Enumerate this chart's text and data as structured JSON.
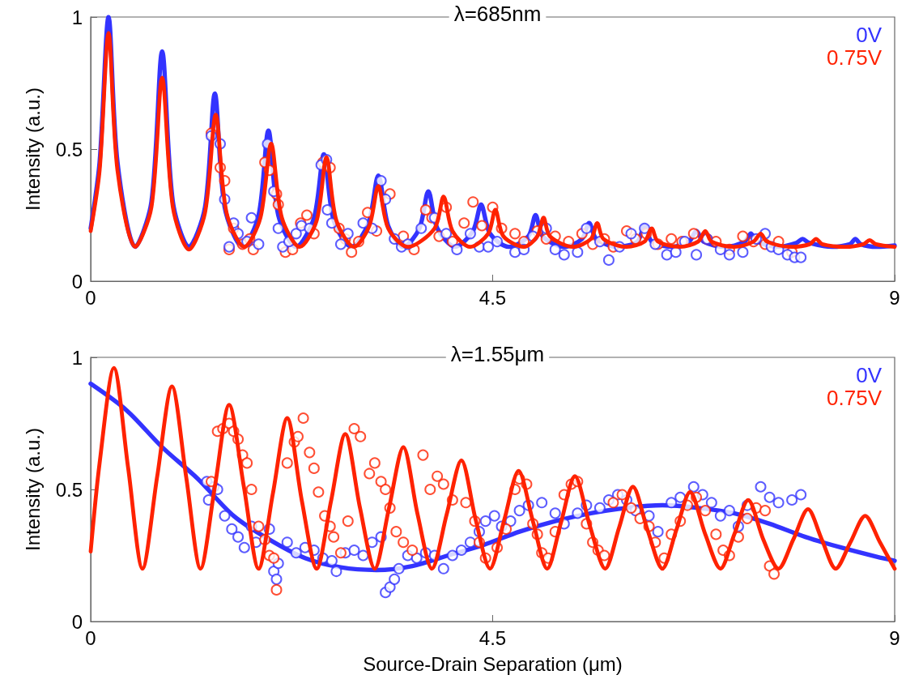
{
  "chart_data": [
    {
      "type": "line",
      "title": "λ=685nm",
      "ylabel": "Intensity (a.u.)",
      "xlim": [
        0,
        9
      ],
      "ylim": [
        0,
        1
      ],
      "xticks": [
        0,
        4.5,
        9
      ],
      "yticks": [
        0,
        0.5,
        1
      ],
      "grid": false,
      "legend": "top right",
      "series": [
        {
          "name": "0V",
          "marker": "none",
          "color": "#3333ff",
          "x": [
            0,
            0.1,
            0.2,
            0.3,
            0.5,
            0.68,
            0.8,
            0.92,
            1.1,
            1.28,
            1.39,
            1.5,
            1.7,
            1.88,
            1.99,
            2.1,
            2.3,
            2.5,
            2.61,
            2.72,
            2.92,
            3.11,
            3.22,
            3.33,
            3.5,
            3.68,
            3.78,
            3.88,
            4.08,
            4.28,
            4.37,
            4.47,
            4.68,
            4.9,
            4.98,
            5.06,
            5.3,
            5.5,
            5.58,
            5.66,
            5.9,
            6.12,
            6.2,
            6.28,
            6.5,
            6.7,
            6.78,
            6.86,
            7.1,
            7.32,
            7.39,
            7.46,
            7.7,
            7.9,
            7.97,
            8.04,
            8.3,
            8.5,
            8.56,
            8.62,
            8.8,
            9
          ],
          "values": [
            0.2,
            0.45,
            1,
            0.45,
            0.13,
            0.3,
            0.87,
            0.3,
            0.13,
            0.28,
            0.71,
            0.28,
            0.13,
            0.25,
            0.57,
            0.25,
            0.13,
            0.24,
            0.48,
            0.23,
            0.13,
            0.22,
            0.4,
            0.21,
            0.13,
            0.2,
            0.34,
            0.2,
            0.13,
            0.19,
            0.29,
            0.18,
            0.13,
            0.17,
            0.25,
            0.17,
            0.13,
            0.16,
            0.22,
            0.16,
            0.13,
            0.15,
            0.21,
            0.15,
            0.13,
            0.15,
            0.19,
            0.15,
            0.13,
            0.15,
            0.18,
            0.15,
            0.13,
            0.145,
            0.16,
            0.145,
            0.13,
            0.14,
            0.16,
            0.14,
            0.13,
            0.135
          ]
        },
        {
          "name": "0.75V",
          "marker": "none",
          "color": "#ff2200",
          "x": [
            0,
            0.1,
            0.2,
            0.3,
            0.5,
            0.68,
            0.8,
            0.92,
            1.1,
            1.28,
            1.4,
            1.52,
            1.72,
            1.9,
            2.02,
            2.14,
            2.34,
            2.53,
            2.64,
            2.75,
            2.95,
            3.12,
            3.22,
            3.33,
            3.55,
            3.85,
            3.95,
            4.05,
            4.25,
            4.45,
            4.53,
            4.62,
            4.85,
            5,
            5.07,
            5.14,
            5.4,
            5.6,
            5.67,
            5.74,
            6,
            6.2,
            6.28,
            6.35,
            6.6,
            6.8,
            6.88,
            6.95,
            7.2,
            7.42,
            7.5,
            7.57,
            7.85,
            8.05,
            8.12,
            8.19,
            8.45,
            8.65,
            8.72,
            8.79,
            9
          ],
          "values": [
            0.19,
            0.42,
            0.94,
            0.42,
            0.13,
            0.28,
            0.77,
            0.28,
            0.12,
            0.26,
            0.63,
            0.26,
            0.13,
            0.24,
            0.52,
            0.24,
            0.13,
            0.23,
            0.47,
            0.23,
            0.13,
            0.21,
            0.36,
            0.2,
            0.13,
            0.2,
            0.32,
            0.19,
            0.13,
            0.18,
            0.27,
            0.17,
            0.13,
            0.17,
            0.24,
            0.17,
            0.13,
            0.16,
            0.22,
            0.16,
            0.13,
            0.15,
            0.2,
            0.15,
            0.13,
            0.15,
            0.19,
            0.15,
            0.13,
            0.15,
            0.18,
            0.15,
            0.13,
            0.14,
            0.16,
            0.14,
            0.13,
            0.14,
            0.155,
            0.14,
            0.13
          ]
        },
        {
          "type": "scatter",
          "marker": "circle",
          "color": "#ff2200",
          "x": [
            1.35,
            1.45,
            1.5,
            1.55,
            1.6,
            1.7,
            1.78,
            1.82,
            1.95,
            2,
            2.08,
            2.1,
            2.18,
            2.26,
            2.35,
            2.42,
            2.5,
            2.6,
            2.68,
            2.78,
            2.85,
            2.92,
            3,
            3.1,
            3.2,
            3.35,
            3.5,
            3.62,
            3.75,
            3.82,
            3.9,
            3.98,
            4.05,
            4.18,
            4.28,
            4.38,
            4.5,
            4.6,
            4.75,
            4.85,
            5,
            5.1,
            5.2,
            5.35,
            5.5,
            5.62,
            5.75,
            5.85,
            6,
            6.1,
            6.22,
            6.35,
            6.5,
            6.62,
            6.75,
            6.9,
            7,
            7.15,
            7.3,
            7.42,
            7.55,
            7.7,
            7.85
          ],
          "values": [
            0.56,
            0.43,
            0.38,
            0.12,
            0.2,
            0.14,
            0.16,
            0.12,
            0.45,
            0.42,
            0.33,
            0.29,
            0.11,
            0.12,
            0.22,
            0.25,
            0.18,
            0.45,
            0.43,
            0.2,
            0.16,
            0.11,
            0.15,
            0.26,
            0.19,
            0.33,
            0.17,
            0.12,
            0.27,
            0.24,
            0.17,
            0.28,
            0.15,
            0.22,
            0.3,
            0.21,
            0.28,
            0.2,
            0.18,
            0.15,
            0.19,
            0.16,
            0.17,
            0.15,
            0.18,
            0.14,
            0.16,
            0.13,
            0.19,
            0.16,
            0.18,
            0.14,
            0.16,
            0.15,
            0.18,
            0.16,
            0.15,
            0.12,
            0.17,
            0.15,
            0.14,
            0.15,
            0.11
          ]
        },
        {
          "type": "scatter",
          "marker": "circle",
          "color": "#3333ff",
          "x": [
            1.35,
            1.45,
            1.5,
            1.55,
            1.6,
            1.65,
            1.75,
            1.8,
            1.88,
            1.98,
            2.05,
            2.1,
            2.15,
            2.22,
            2.3,
            2.36,
            2.45,
            2.58,
            2.64,
            2.65,
            2.7,
            2.8,
            2.88,
            3.05,
            3.15,
            3.25,
            3.3,
            3.4,
            3.48,
            3.55,
            3.7,
            3.85,
            3.98,
            4.1,
            4.25,
            4.35,
            4.45,
            4.55,
            4.75,
            4.85,
            4.95,
            5.1,
            5.2,
            5.3,
            5.45,
            5.55,
            5.7,
            5.8,
            5.92,
            6.05,
            6.2,
            6.32,
            6.45,
            6.55,
            6.65,
            6.78,
            6.9,
            7.05,
            7.15,
            7.3,
            7.45,
            7.55,
            7.62,
            7.7,
            7.8,
            7.88,
            7.95
          ],
          "values": [
            0.55,
            0.52,
            0.31,
            0.13,
            0.22,
            0.18,
            0.15,
            0.24,
            0.14,
            0.52,
            0.34,
            0.2,
            0.13,
            0.15,
            0.18,
            0.21,
            0.2,
            0.44,
            0.46,
            0.27,
            0.22,
            0.14,
            0.18,
            0.22,
            0.2,
            0.38,
            0.31,
            0.16,
            0.13,
            0.14,
            0.2,
            0.24,
            0.18,
            0.12,
            0.18,
            0.13,
            0.13,
            0.15,
            0.11,
            0.12,
            0.17,
            0.2,
            0.12,
            0.1,
            0.11,
            0.2,
            0.15,
            0.08,
            0.13,
            0.18,
            0.2,
            0.14,
            0.1,
            0.11,
            0.15,
            0.1,
            0.16,
            0.12,
            0.1,
            0.11,
            0.16,
            0.18,
            0.13,
            0.12,
            0.1,
            0.09,
            0.09
          ]
        }
      ]
    },
    {
      "type": "line",
      "title": "λ=1.55μm",
      "xlabel": "Source-Drain Separation (μm)",
      "ylabel": "Intensity (a.u.)",
      "xlim": [
        0,
        9
      ],
      "ylim": [
        0,
        1
      ],
      "xticks": [
        0,
        4.5,
        9
      ],
      "yticks": [
        0,
        0.5,
        1
      ],
      "grid": false,
      "legend": "top right",
      "series": [
        {
          "name": "0V",
          "marker": "none",
          "color": "#3333ff",
          "x": [
            0,
            0.4,
            0.8,
            1.2,
            1.6,
            2,
            2.4,
            2.8,
            3.2,
            3.6,
            4,
            4.4,
            4.8,
            5.2,
            5.6,
            6,
            6.4,
            6.8,
            7.2,
            7.6,
            8,
            8.4,
            8.8,
            9
          ],
          "values": [
            0.9,
            0.8,
            0.66,
            0.54,
            0.4,
            0.31,
            0.24,
            0.205,
            0.195,
            0.21,
            0.25,
            0.29,
            0.34,
            0.38,
            0.41,
            0.43,
            0.44,
            0.43,
            0.41,
            0.37,
            0.32,
            0.28,
            0.245,
            0.23
          ]
        },
        {
          "name": "0.75V",
          "marker": "none",
          "color": "#ff2200",
          "x": [
            0,
            0.1,
            0.26,
            0.42,
            0.58,
            0.745,
            0.91,
            1.07,
            1.23,
            1.39,
            1.55,
            1.715,
            1.88,
            2.04,
            2.2,
            2.365,
            2.53,
            2.69,
            2.85,
            3.015,
            3.18,
            3.34,
            3.5,
            3.66,
            3.82,
            3.985,
            4.15,
            4.31,
            4.47,
            4.63,
            4.79,
            4.95,
            5.11,
            5.265,
            5.42,
            5.59,
            5.76,
            5.915,
            6.07,
            6.235,
            6.4,
            6.555,
            6.71,
            6.88,
            7.05,
            7.205,
            7.36,
            7.53,
            7.7,
            7.865,
            8.03,
            8.185,
            8.34,
            8.505,
            8.67,
            8.835,
            9
          ],
          "values": [
            0.265,
            0.6,
            0.96,
            0.58,
            0.2,
            0.55,
            0.89,
            0.545,
            0.2,
            0.51,
            0.82,
            0.51,
            0.2,
            0.485,
            0.77,
            0.455,
            0.2,
            0.455,
            0.71,
            0.43,
            0.2,
            0.43,
            0.66,
            0.405,
            0.2,
            0.405,
            0.61,
            0.385,
            0.2,
            0.385,
            0.57,
            0.38,
            0.2,
            0.375,
            0.55,
            0.36,
            0.2,
            0.355,
            0.51,
            0.345,
            0.2,
            0.345,
            0.49,
            0.33,
            0.2,
            0.33,
            0.46,
            0.31,
            0.2,
            0.31,
            0.425,
            0.31,
            0.2,
            0.3,
            0.4,
            0.3,
            0.2
          ]
        },
        {
          "type": "scatter",
          "marker": "circle",
          "color": "#3333ff",
          "x": [
            1.3,
            1.38,
            1.42,
            1.32,
            1.5,
            1.58,
            1.65,
            1.72,
            1.8,
            1.85,
            2,
            2.05,
            2.08,
            2.1,
            2.2,
            2.3,
            2.4,
            2.5,
            2.6,
            2.7,
            2.75,
            2.85,
            2.95,
            3.05,
            3.15,
            3.25,
            3.3,
            3.35,
            3.4,
            3.45,
            3.55,
            3.65,
            3.75,
            3.85,
            3.95,
            4.05,
            4.15,
            4.25,
            4.35,
            4.42,
            4.52,
            4.6,
            4.7,
            4.8,
            4.9,
            5.05,
            5.2,
            5.3,
            5.45,
            5.55,
            5.7,
            5.8,
            5.9,
            6,
            6.1,
            6.25,
            6.35,
            6.5,
            6.6,
            6.75,
            6.85,
            6.95,
            7.05,
            7.15,
            7.25,
            7.35,
            7.5,
            7.6,
            7.7,
            7.85,
            7.95
          ],
          "values": [
            0.53,
            0.51,
            0.5,
            0.46,
            0.4,
            0.35,
            0.32,
            0.28,
            0.36,
            0.3,
            0.35,
            0.19,
            0.16,
            0.22,
            0.3,
            0.26,
            0.28,
            0.27,
            0.24,
            0.23,
            0.19,
            0.26,
            0.27,
            0.25,
            0.3,
            0.32,
            0.11,
            0.13,
            0.16,
            0.2,
            0.25,
            0.24,
            0.26,
            0.25,
            0.2,
            0.25,
            0.27,
            0.3,
            0.34,
            0.38,
            0.4,
            0.36,
            0.38,
            0.42,
            0.44,
            0.45,
            0.41,
            0.37,
            0.41,
            0.44,
            0.43,
            0.46,
            0.48,
            0.46,
            0.42,
            0.4,
            0.34,
            0.45,
            0.47,
            0.51,
            0.48,
            0.45,
            0.4,
            0.42,
            0.36,
            0.44,
            0.51,
            0.47,
            0.45,
            0.46,
            0.48
          ]
        },
        {
          "type": "scatter",
          "marker": "circle",
          "color": "#ff2200",
          "x": [
            1.35,
            1.42,
            1.48,
            1.55,
            1.6,
            1.65,
            1.7,
            1.75,
            1.8,
            1.88,
            1.95,
            2,
            2.05,
            2.08,
            2.2,
            2.28,
            2.32,
            2.38,
            2.45,
            2.5,
            2.55,
            2.62,
            2.68,
            2.72,
            2.8,
            2.88,
            2.95,
            3.02,
            3.12,
            3.18,
            3.25,
            3.3,
            3.35,
            3.42,
            3.5,
            3.6,
            3.72,
            3.8,
            3.88,
            3.95,
            4.05,
            4.2,
            4.3,
            4.35,
            4.42,
            4.55,
            4.65,
            4.75,
            4.8,
            4.88,
            4.95,
            5,
            5.05,
            5.12,
            5.2,
            5.3,
            5.38,
            5.45,
            5.55,
            5.62,
            5.68,
            5.75,
            5.85,
            5.95,
            6.05,
            6.15,
            6.25,
            6.32,
            6.42,
            6.5,
            6.6,
            6.68,
            6.78,
            6.88,
            7,
            7.08,
            7.15,
            7.25,
            7.35,
            7.45,
            7.55,
            7.6,
            7.65
          ],
          "values": [
            0.53,
            0.72,
            0.73,
            0.75,
            0.72,
            0.69,
            0.63,
            0.6,
            0.5,
            0.36,
            0.31,
            0.25,
            0.24,
            0.12,
            0.6,
            0.68,
            0.7,
            0.77,
            0.64,
            0.58,
            0.49,
            0.4,
            0.36,
            0.32,
            0.26,
            0.38,
            0.73,
            0.7,
            0.56,
            0.6,
            0.53,
            0.5,
            0.43,
            0.34,
            0.3,
            0.27,
            0.63,
            0.5,
            0.55,
            0.52,
            0.46,
            0.45,
            0.38,
            0.3,
            0.24,
            0.28,
            0.35,
            0.5,
            0.54,
            0.52,
            0.37,
            0.33,
            0.26,
            0.24,
            0.34,
            0.48,
            0.52,
            0.53,
            0.37,
            0.3,
            0.27,
            0.25,
            0.45,
            0.48,
            0.43,
            0.39,
            0.36,
            0.3,
            0.24,
            0.33,
            0.38,
            0.44,
            0.47,
            0.42,
            0.33,
            0.27,
            0.25,
            0.32,
            0.39,
            0.43,
            0.42,
            0.21,
            0.18
          ]
        }
      ]
    }
  ]
}
